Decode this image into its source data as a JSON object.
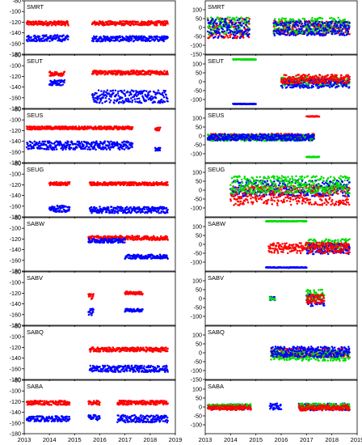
{
  "colors": {
    "red": "#ff0000",
    "blue": "#0000ff",
    "green": "#00dd00",
    "axis": "#000000"
  },
  "x_tick_labels": [
    "2013",
    "2014",
    "2015",
    "2016",
    "2017",
    "2018",
    "2019"
  ],
  "chart_data": [
    {
      "type": "scatter",
      "column": "left",
      "title": "SMRT",
      "xlim": [
        2013,
        2019
      ],
      "ylim": [
        -180,
        -80
      ],
      "yticks": [
        -80,
        -100,
        -120,
        -140,
        -160,
        -180
      ],
      "series": [
        {
          "color": "red",
          "segments": [
            {
              "x0": 2013.1,
              "x1": 2014.75,
              "y": -122,
              "spread": 4
            },
            {
              "x0": 2015.7,
              "x1": 2018.7,
              "y": -122,
              "spread": 4
            }
          ]
        },
        {
          "color": "blue",
          "segments": [
            {
              "x0": 2013.1,
              "x1": 2014.75,
              "y": -150,
              "spread": 6
            },
            {
              "x0": 2015.7,
              "x1": 2018.7,
              "y": -151,
              "spread": 5
            }
          ]
        }
      ]
    },
    {
      "type": "scatter",
      "column": "right",
      "title": "SMRT",
      "xlim": [
        2013,
        2019
      ],
      "ylim": [
        -150,
        150
      ],
      "yticks": [
        100,
        50,
        0,
        -50,
        -100,
        -150
      ],
      "series": [
        {
          "color": "red",
          "segments": [
            {
              "x0": 2013.1,
              "x1": 2014.75,
              "y": 0,
              "spread": 60
            },
            {
              "x0": 2015.7,
              "x1": 2018.7,
              "y": 0,
              "spread": 40
            }
          ]
        },
        {
          "color": "green",
          "segments": [
            {
              "x0": 2013.1,
              "x1": 2014.75,
              "y": 10,
              "spread": 50
            },
            {
              "x0": 2015.7,
              "x1": 2018.7,
              "y": 10,
              "spread": 45
            }
          ]
        },
        {
          "color": "blue",
          "segments": [
            {
              "x0": 2013.1,
              "x1": 2014.75,
              "y": -5,
              "spread": 55
            },
            {
              "x0": 2015.7,
              "x1": 2018.7,
              "y": -5,
              "spread": 40
            }
          ]
        }
      ]
    },
    {
      "type": "scatter",
      "column": "left",
      "title": "SEUT",
      "xlim": [
        2013,
        2019
      ],
      "ylim": [
        -180,
        -80
      ],
      "yticks": [
        -80,
        -100,
        -120,
        -140,
        -160,
        -180
      ],
      "series": [
        {
          "color": "red",
          "segments": [
            {
              "x0": 2014.0,
              "x1": 2014.6,
              "y": -115,
              "spread": 4
            },
            {
              "x0": 2015.7,
              "x1": 2018.7,
              "y": -113,
              "spread": 4
            }
          ]
        },
        {
          "color": "blue",
          "segments": [
            {
              "x0": 2014.0,
              "x1": 2014.6,
              "y": -132,
              "spread": 5
            },
            {
              "x0": 2015.7,
              "x1": 2018.7,
              "y": -158,
              "spread": 12
            }
          ]
        }
      ]
    },
    {
      "type": "scatter",
      "column": "right",
      "title": "SEUT",
      "xlim": [
        2013,
        2019
      ],
      "ylim": [
        -150,
        150
      ],
      "yticks": [
        100,
        50,
        0,
        -50,
        -100
      ],
      "series": [
        {
          "color": "green",
          "segments": [
            {
              "x0": 2014.1,
              "x1": 2015.0,
              "y": 125,
              "spread": 2
            },
            {
              "x0": 2016.0,
              "x1": 2018.7,
              "y": 0,
              "spread": 25
            }
          ]
        },
        {
          "color": "blue",
          "segments": [
            {
              "x0": 2014.1,
              "x1": 2015.0,
              "y": -125,
              "spread": 2
            },
            {
              "x0": 2016.0,
              "x1": 2018.7,
              "y": -10,
              "spread": 25
            }
          ]
        },
        {
          "color": "red",
          "segments": [
            {
              "x0": 2016.0,
              "x1": 2018.7,
              "y": 15,
              "spread": 25
            }
          ]
        }
      ]
    },
    {
      "type": "scatter",
      "column": "left",
      "title": "SEUS",
      "xlim": [
        2013,
        2019
      ],
      "ylim": [
        -180,
        -80
      ],
      "yticks": [
        -80,
        -100,
        -120,
        -140,
        -160,
        -180
      ],
      "series": [
        {
          "color": "red",
          "segments": [
            {
              "x0": 2013.1,
              "x1": 2017.3,
              "y": -115,
              "spread": 3
            },
            {
              "x0": 2018.2,
              "x1": 2018.4,
              "y": -117,
              "spread": 3
            }
          ]
        },
        {
          "color": "blue",
          "segments": [
            {
              "x0": 2013.1,
              "x1": 2017.3,
              "y": -148,
              "spread": 8
            },
            {
              "x0": 2018.2,
              "x1": 2018.4,
              "y": -155,
              "spread": 3
            }
          ]
        }
      ]
    },
    {
      "type": "scatter",
      "column": "right",
      "title": "SEUS",
      "xlim": [
        2013,
        2019
      ],
      "ylim": [
        -150,
        150
      ],
      "yticks": [
        100,
        50,
        0,
        -50,
        -100
      ],
      "series": [
        {
          "color": "red",
          "segments": [
            {
              "x0": 2013.1,
              "x1": 2017.3,
              "y": -5,
              "spread": 18
            },
            {
              "x0": 2017.0,
              "x1": 2017.5,
              "y": 110,
              "spread": 2
            }
          ]
        },
        {
          "color": "green",
          "segments": [
            {
              "x0": 2013.1,
              "x1": 2017.3,
              "y": -10,
              "spread": 18
            },
            {
              "x0": 2017.0,
              "x1": 2017.5,
              "y": -118,
              "spread": 2
            }
          ]
        },
        {
          "color": "blue",
          "segments": [
            {
              "x0": 2013.1,
              "x1": 2017.3,
              "y": -8,
              "spread": 18
            }
          ]
        }
      ]
    },
    {
      "type": "scatter",
      "column": "left",
      "title": "SEUG",
      "xlim": [
        2013,
        2019
      ],
      "ylim": [
        -180,
        -80
      ],
      "yticks": [
        -80,
        -100,
        -120,
        -140,
        -160,
        -180
      ],
      "series": [
        {
          "color": "red",
          "segments": [
            {
              "x0": 2014.0,
              "x1": 2014.8,
              "y": -118,
              "spread": 3
            },
            {
              "x0": 2015.6,
              "x1": 2018.7,
              "y": -118,
              "spread": 3
            }
          ]
        },
        {
          "color": "blue",
          "segments": [
            {
              "x0": 2014.0,
              "x1": 2014.8,
              "y": -165,
              "spread": 6
            },
            {
              "x0": 2015.6,
              "x1": 2018.7,
              "y": -167,
              "spread": 6
            }
          ]
        }
      ]
    },
    {
      "type": "scatter",
      "column": "right",
      "title": "SEUG",
      "xlim": [
        2013,
        2019
      ],
      "ylim": [
        -150,
        150
      ],
      "yticks": [
        100,
        50,
        0,
        -50,
        -100
      ],
      "series": [
        {
          "color": "blue",
          "segments": [
            {
              "x0": 2014.0,
              "x1": 2018.7,
              "y": 10,
              "spread": 45
            }
          ]
        },
        {
          "color": "red",
          "segments": [
            {
              "x0": 2014.0,
              "x1": 2018.7,
              "y": -30,
              "spread": 55
            }
          ]
        },
        {
          "color": "green",
          "segments": [
            {
              "x0": 2014.0,
              "x1": 2018.7,
              "y": 30,
              "spread": 50
            }
          ]
        }
      ]
    },
    {
      "type": "scatter",
      "column": "left",
      "title": "SABW",
      "xlim": [
        2013,
        2019
      ],
      "ylim": [
        -180,
        -80
      ],
      "yticks": [
        -80,
        -100,
        -120,
        -140,
        -160,
        -180
      ],
      "series": [
        {
          "color": "red",
          "segments": [
            {
              "x0": 2015.55,
              "x1": 2018.7,
              "y": -118,
              "spread": 4
            }
          ]
        },
        {
          "color": "blue",
          "segments": [
            {
              "x0": 2015.55,
              "x1": 2017.0,
              "y": -123,
              "spread": 4
            },
            {
              "x0": 2017.0,
              "x1": 2018.7,
              "y": -153,
              "spread": 4
            }
          ]
        }
      ]
    },
    {
      "type": "scatter",
      "column": "right",
      "title": "SABW",
      "xlim": [
        2013,
        2019
      ],
      "ylim": [
        -150,
        150
      ],
      "yticks": [
        100,
        50,
        0,
        -50,
        -100
      ],
      "series": [
        {
          "color": "green",
          "segments": [
            {
              "x0": 2015.4,
              "x1": 2017.0,
              "y": 130,
              "spread": 2
            },
            {
              "x0": 2017.0,
              "x1": 2018.7,
              "y": 0,
              "spread": 30
            }
          ]
        },
        {
          "color": "blue",
          "segments": [
            {
              "x0": 2015.4,
              "x1": 2017.0,
              "y": -130,
              "spread": 2
            },
            {
              "x0": 2017.0,
              "x1": 2018.7,
              "y": -25,
              "spread": 30
            }
          ]
        },
        {
          "color": "red",
          "segments": [
            {
              "x0": 2015.5,
              "x1": 2018.7,
              "y": -20,
              "spread": 30
            }
          ]
        }
      ]
    },
    {
      "type": "scatter",
      "column": "left",
      "title": "SABV",
      "xlim": [
        2013,
        2019
      ],
      "ylim": [
        -180,
        -80
      ],
      "yticks": [
        -80,
        -100,
        -120,
        -140,
        -160,
        -180
      ],
      "series": [
        {
          "color": "red",
          "segments": [
            {
              "x0": 2015.55,
              "x1": 2015.75,
              "y": -125,
              "spread": 6
            },
            {
              "x0": 2017.0,
              "x1": 2017.7,
              "y": -120,
              "spread": 3
            }
          ]
        },
        {
          "color": "blue",
          "segments": [
            {
              "x0": 2015.55,
              "x1": 2015.75,
              "y": -155,
              "spread": 6
            },
            {
              "x0": 2017.0,
              "x1": 2017.7,
              "y": -152,
              "spread": 3
            }
          ]
        }
      ]
    },
    {
      "type": "scatter",
      "column": "right",
      "title": "SABV",
      "xlim": [
        2013,
        2019
      ],
      "ylim": [
        -150,
        150
      ],
      "yticks": [
        100,
        50,
        0,
        -50,
        -100
      ],
      "series": [
        {
          "color": "blue",
          "segments": [
            {
              "x0": 2015.55,
              "x1": 2015.75,
              "y": 0,
              "spread": 10
            },
            {
              "x0": 2017.0,
              "x1": 2017.7,
              "y": -10,
              "spread": 35
            }
          ]
        },
        {
          "color": "green",
          "segments": [
            {
              "x0": 2015.55,
              "x1": 2015.75,
              "y": 0,
              "spread": 8
            },
            {
              "x0": 2017.0,
              "x1": 2017.7,
              "y": 20,
              "spread": 30
            }
          ]
        },
        {
          "color": "red",
          "segments": [
            {
              "x0": 2017.0,
              "x1": 2017.7,
              "y": 0,
              "spread": 25
            }
          ]
        }
      ]
    },
    {
      "type": "scatter",
      "column": "left",
      "title": "SABQ",
      "xlim": [
        2013,
        2019
      ],
      "ylim": [
        -180,
        -80
      ],
      "yticks": [
        -80,
        -100,
        -120,
        -140,
        -160,
        -180
      ],
      "series": [
        {
          "color": "red",
          "segments": [
            {
              "x0": 2015.6,
              "x1": 2018.7,
              "y": -124,
              "spread": 4
            }
          ]
        },
        {
          "color": "blue",
          "segments": [
            {
              "x0": 2015.6,
              "x1": 2018.7,
              "y": -160,
              "spread": 6
            }
          ]
        }
      ]
    },
    {
      "type": "scatter",
      "column": "right",
      "title": "SABQ",
      "xlim": [
        2013,
        2019
      ],
      "ylim": [
        -150,
        150
      ],
      "yticks": [
        100,
        50,
        0,
        -50,
        -100,
        -150
      ],
      "series": [
        {
          "color": "red",
          "segments": [
            {
              "x0": 2015.6,
              "x1": 2018.7,
              "y": 0,
              "spread": 25
            }
          ]
        },
        {
          "color": "green",
          "segments": [
            {
              "x0": 2015.6,
              "x1": 2018.7,
              "y": -15,
              "spread": 30
            }
          ]
        },
        {
          "color": "blue",
          "segments": [
            {
              "x0": 2015.6,
              "x1": 2018.7,
              "y": 5,
              "spread": 30
            }
          ]
        }
      ]
    },
    {
      "type": "scatter",
      "column": "left",
      "title": "SABA",
      "xlim": [
        2013,
        2019
      ],
      "ylim": [
        -180,
        -80
      ],
      "yticks": [
        -80,
        -100,
        -120,
        -140,
        -160,
        -180
      ],
      "series": [
        {
          "color": "red",
          "segments": [
            {
              "x0": 2013.1,
              "x1": 2014.8,
              "y": -122,
              "spread": 4
            },
            {
              "x0": 2015.55,
              "x1": 2016.0,
              "y": -122,
              "spread": 4
            },
            {
              "x0": 2016.7,
              "x1": 2018.7,
              "y": -122,
              "spread": 4
            }
          ]
        },
        {
          "color": "blue",
          "segments": [
            {
              "x0": 2013.1,
              "x1": 2014.8,
              "y": -152,
              "spread": 5
            },
            {
              "x0": 2015.55,
              "x1": 2016.0,
              "y": -150,
              "spread": 5
            },
            {
              "x0": 2016.7,
              "x1": 2018.7,
              "y": -152,
              "spread": 7
            }
          ]
        }
      ]
    },
    {
      "type": "scatter",
      "column": "right",
      "title": "SABA",
      "xlim": [
        2013,
        2019
      ],
      "ylim": [
        -150,
        150
      ],
      "yticks": [
        100,
        50,
        0,
        -50,
        -100
      ],
      "series": [
        {
          "color": "blue",
          "segments": [
            {
              "x0": 2013.1,
              "x1": 2014.8,
              "y": 0,
              "spread": 15
            },
            {
              "x0": 2015.55,
              "x1": 2016.0,
              "y": 0,
              "spread": 20
            },
            {
              "x0": 2016.7,
              "x1": 2018.7,
              "y": 0,
              "spread": 20
            }
          ]
        },
        {
          "color": "green",
          "segments": [
            {
              "x0": 2013.1,
              "x1": 2014.8,
              "y": 5,
              "spread": 12
            },
            {
              "x0": 2016.7,
              "x1": 2018.7,
              "y": 5,
              "spread": 15
            }
          ]
        },
        {
          "color": "red",
          "segments": [
            {
              "x0": 2013.1,
              "x1": 2014.8,
              "y": -5,
              "spread": 12
            },
            {
              "x0": 2016.7,
              "x1": 2018.7,
              "y": -5,
              "spread": 15
            }
          ]
        }
      ]
    }
  ]
}
